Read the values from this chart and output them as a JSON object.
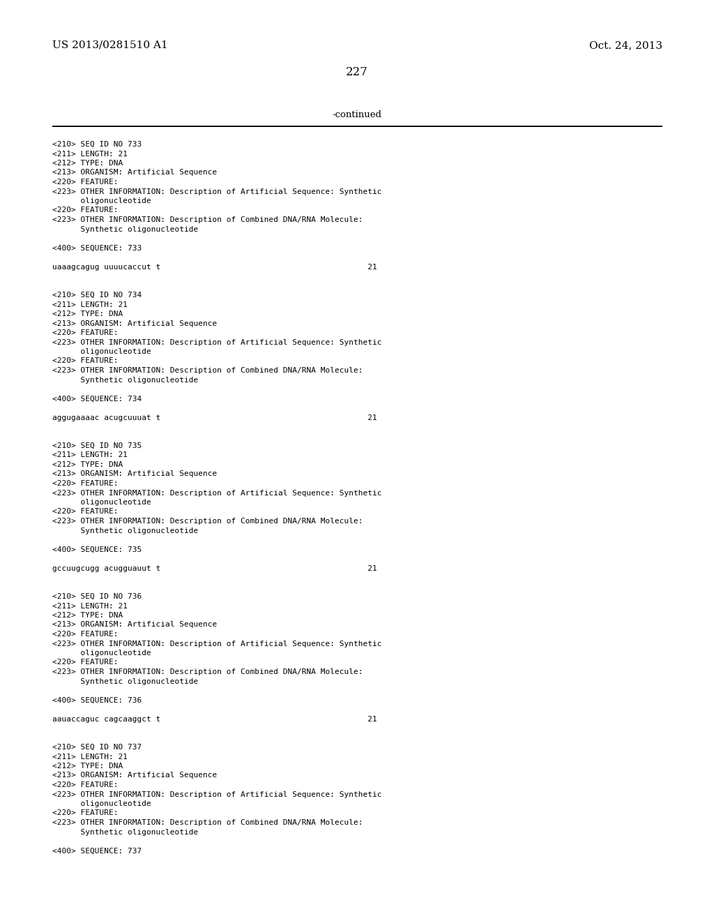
{
  "header_left": "US 2013/0281510 A1",
  "header_right": "Oct. 24, 2013",
  "page_number": "227",
  "continued_text": "-continued",
  "background_color": "#ffffff",
  "text_color": "#000000",
  "font_size_header": 11,
  "font_size_page": 12,
  "font_size_continued": 9.5,
  "mono_font_size": 8.0,
  "content_lines": [
    "<210> SEQ ID NO 733",
    "<211> LENGTH: 21",
    "<212> TYPE: DNA",
    "<213> ORGANISM: Artificial Sequence",
    "<220> FEATURE:",
    "<223> OTHER INFORMATION: Description of Artificial Sequence: Synthetic",
    "      oligonucleotide",
    "<220> FEATURE:",
    "<223> OTHER INFORMATION: Description of Combined DNA/RNA Molecule:",
    "      Synthetic oligonucleotide",
    "",
    "<400> SEQUENCE: 733",
    "",
    "uaaagcagug uuuucaccut t                                            21",
    "",
    "",
    "<210> SEQ ID NO 734",
    "<211> LENGTH: 21",
    "<212> TYPE: DNA",
    "<213> ORGANISM: Artificial Sequence",
    "<220> FEATURE:",
    "<223> OTHER INFORMATION: Description of Artificial Sequence: Synthetic",
    "      oligonucleotide",
    "<220> FEATURE:",
    "<223> OTHER INFORMATION: Description of Combined DNA/RNA Molecule:",
    "      Synthetic oligonucleotide",
    "",
    "<400> SEQUENCE: 734",
    "",
    "aggugaaaac acugcuuuat t                                            21",
    "",
    "",
    "<210> SEQ ID NO 735",
    "<211> LENGTH: 21",
    "<212> TYPE: DNA",
    "<213> ORGANISM: Artificial Sequence",
    "<220> FEATURE:",
    "<223> OTHER INFORMATION: Description of Artificial Sequence: Synthetic",
    "      oligonucleotide",
    "<220> FEATURE:",
    "<223> OTHER INFORMATION: Description of Combined DNA/RNA Molecule:",
    "      Synthetic oligonucleotide",
    "",
    "<400> SEQUENCE: 735",
    "",
    "gccuugcugg acugguauut t                                            21",
    "",
    "",
    "<210> SEQ ID NO 736",
    "<211> LENGTH: 21",
    "<212> TYPE: DNA",
    "<213> ORGANISM: Artificial Sequence",
    "<220> FEATURE:",
    "<223> OTHER INFORMATION: Description of Artificial Sequence: Synthetic",
    "      oligonucleotide",
    "<220> FEATURE:",
    "<223> OTHER INFORMATION: Description of Combined DNA/RNA Molecule:",
    "      Synthetic oligonucleotide",
    "",
    "<400> SEQUENCE: 736",
    "",
    "aauaccaguc cagcaaggct t                                            21",
    "",
    "",
    "<210> SEQ ID NO 737",
    "<211> LENGTH: 21",
    "<212> TYPE: DNA",
    "<213> ORGANISM: Artificial Sequence",
    "<220> FEATURE:",
    "<223> OTHER INFORMATION: Description of Artificial Sequence: Synthetic",
    "      oligonucleotide",
    "<220> FEATURE:",
    "<223> OTHER INFORMATION: Description of Combined DNA/RNA Molecule:",
    "      Synthetic oligonucleotide",
    "",
    "<400> SEQUENCE: 737"
  ]
}
